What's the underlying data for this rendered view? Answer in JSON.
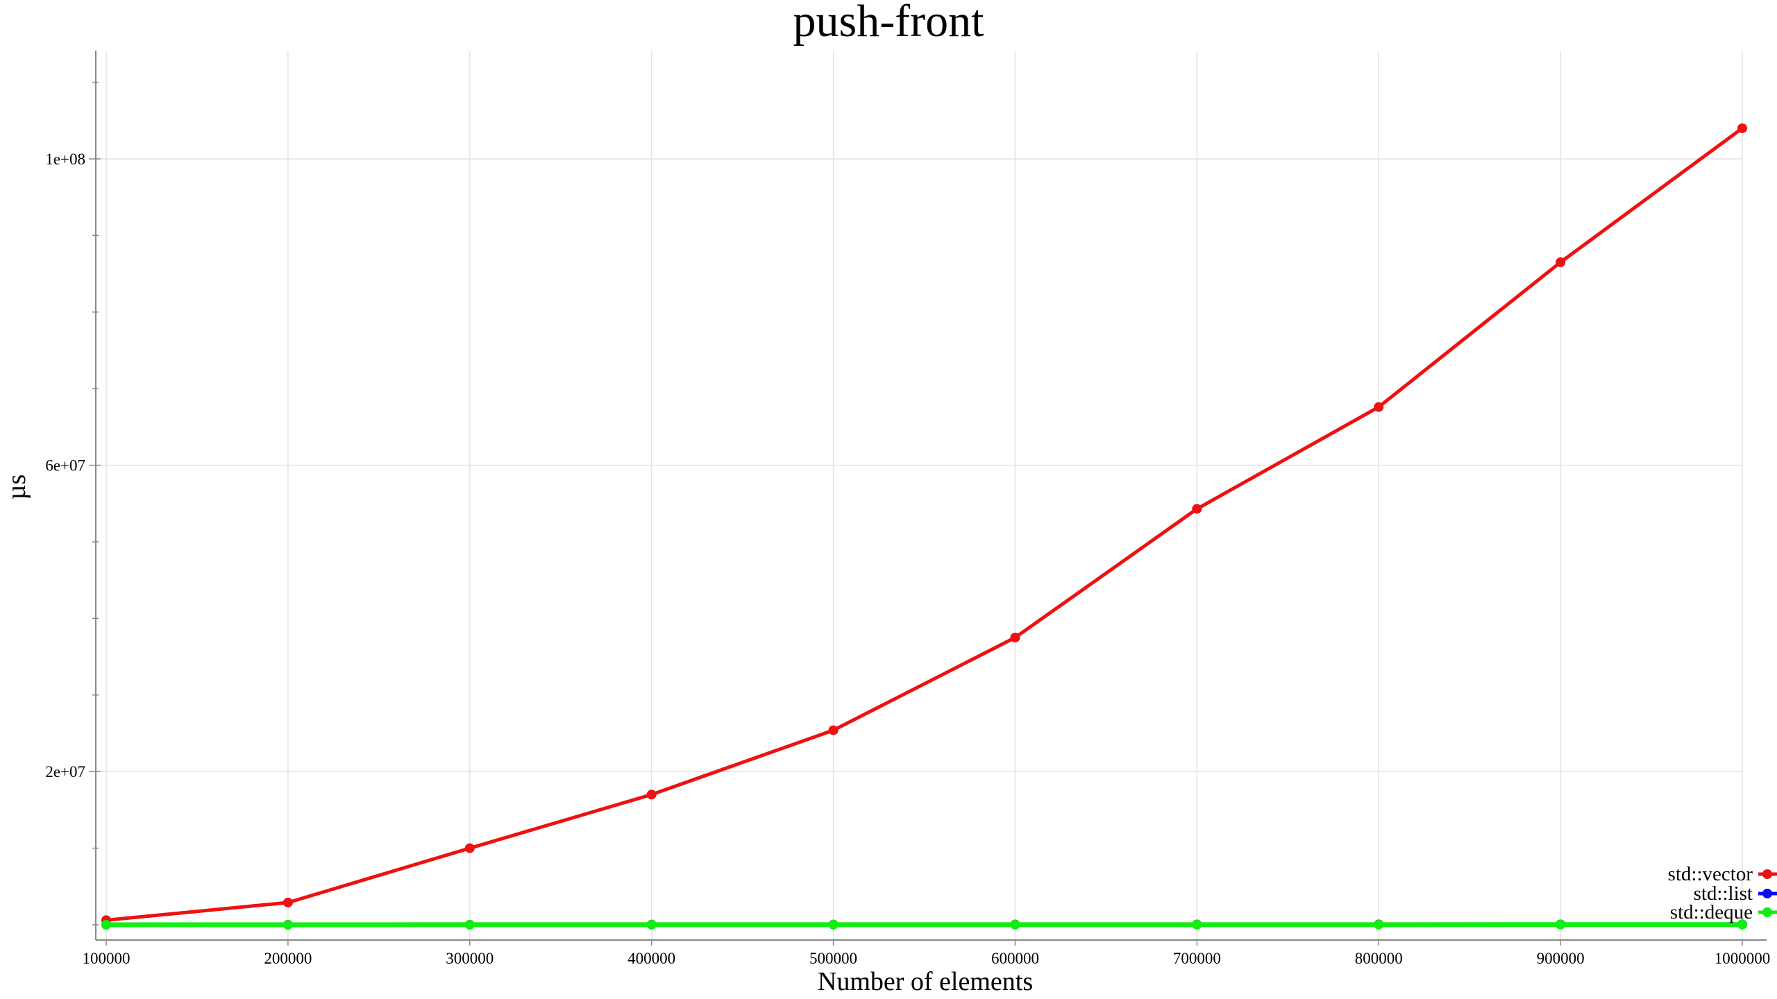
{
  "chart_data": {
    "type": "line",
    "title": "push-front",
    "xlabel": "Number of elements",
    "ylabel": "µs",
    "x": [
      100000,
      200000,
      300000,
      400000,
      500000,
      600000,
      700000,
      800000,
      900000,
      1000000
    ],
    "x_tick_labels": [
      "100000",
      "200000",
      "300000",
      "400000",
      "500000",
      "600000",
      "700000",
      "800000",
      "900000",
      "1000000"
    ],
    "y_tick_values": [
      20000000,
      60000000,
      100000000
    ],
    "y_tick_labels": [
      "2e+07",
      "6e+07",
      "1e+08"
    ],
    "xlim": [
      100000,
      1000000
    ],
    "ylim": [
      0,
      114000000
    ],
    "grid": true,
    "legend_position": "bottom-right",
    "series": [
      {
        "name": "std::vector",
        "color": "#ee1111",
        "values": [
          600000,
          2900000,
          10000000,
          17000000,
          25400000,
          37500000,
          54300000,
          67600000,
          86500000,
          104000000
        ]
      },
      {
        "name": "std::list",
        "color": "#0b0bee",
        "values": [
          5000,
          10000,
          15000,
          20000,
          25000,
          30000,
          35000,
          40000,
          45000,
          50000
        ]
      },
      {
        "name": "std::deque",
        "color": "#11ee11",
        "values": [
          2000,
          4000,
          6000,
          8000,
          10000,
          12000,
          14000,
          16000,
          18000,
          20000
        ]
      }
    ]
  }
}
